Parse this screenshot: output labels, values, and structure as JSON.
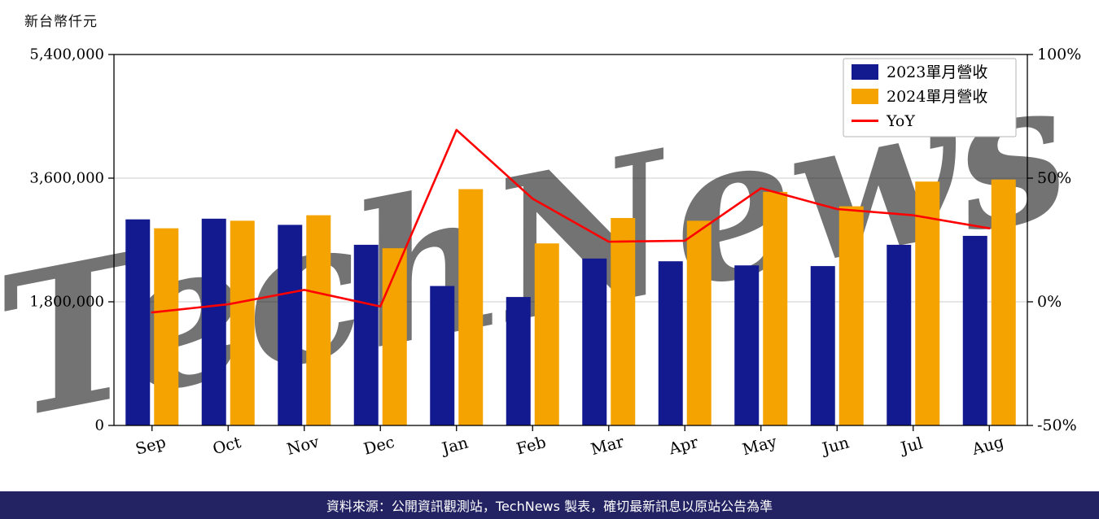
{
  "page": {
    "unit_label": "新台幣仟元",
    "watermark": "TechNews",
    "watermark_color": "#eec3c3",
    "footer": "資料來源：公開資訊觀測站，TechNews 製表，確切最新訊息以原站公告為準"
  },
  "chart_data": {
    "type": "bar",
    "ylabel": "新台幣仟元",
    "categories": [
      "Sep",
      "Oct",
      "Nov",
      "Dec",
      "Jan",
      "Feb",
      "Mar",
      "Apr",
      "May",
      "Jun",
      "Jul",
      "Aug"
    ],
    "series": [
      {
        "name": "2023單月營收",
        "type": "bar",
        "axis": "left",
        "color": "#131a8f",
        "values": [
          3000000,
          3010000,
          2920000,
          2630000,
          2030000,
          1870000,
          2430000,
          2390000,
          2330000,
          2320000,
          2630000,
          2760000
        ]
      },
      {
        "name": "2024單月營收",
        "type": "bar",
        "axis": "left",
        "color": "#f5a300",
        "values": [
          2870000,
          2980000,
          3060000,
          2580000,
          3440000,
          2650000,
          3020000,
          2980000,
          3400000,
          3190000,
          3550000,
          3580000
        ]
      },
      {
        "name": "YoY",
        "type": "line",
        "axis": "right",
        "color": "#ff0000",
        "values": [
          -4.3,
          -1.0,
          4.8,
          -1.9,
          69.5,
          41.7,
          24.3,
          24.7,
          45.9,
          37.5,
          35.0,
          29.7
        ]
      }
    ],
    "left_axis": {
      "range": [
        0,
        5400000
      ],
      "ticks": [
        0,
        1800000,
        3600000,
        5400000
      ],
      "tick_labels": [
        "0",
        "1,800,000",
        "3,600,000",
        "5,400,000"
      ]
    },
    "right_axis": {
      "range": [
        -50,
        100
      ],
      "ticks": [
        -50,
        0,
        50,
        100
      ],
      "tick_labels": [
        "-50%",
        "0%",
        "50%",
        "100%"
      ]
    },
    "grid": true,
    "legend_position": "top-right"
  }
}
